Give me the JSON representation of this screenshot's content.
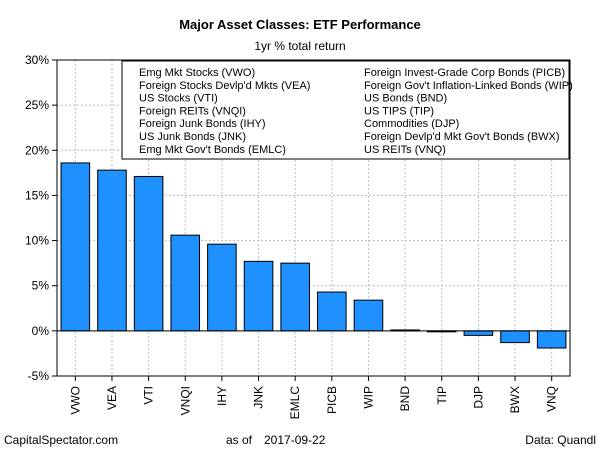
{
  "chart_data": {
    "type": "bar",
    "title": "Major Asset Classes: ETF Performance",
    "subtitle": "1yr % total return",
    "categories": [
      "VWO",
      "VEA",
      "VTI",
      "VNQI",
      "IHY",
      "JNK",
      "EMLC",
      "PICB",
      "WIP",
      "BND",
      "TIP",
      "DJP",
      "BWX",
      "VNQ"
    ],
    "values": [
      18.6,
      17.8,
      17.1,
      10.6,
      9.6,
      7.7,
      7.5,
      4.3,
      3.4,
      0.1,
      -0.1,
      -0.5,
      -1.3,
      -1.9
    ],
    "ylim": [
      -5,
      30
    ],
    "yticks": [
      -5,
      0,
      5,
      10,
      15,
      20,
      25,
      30
    ],
    "ytick_labels": [
      "-5%",
      "0%",
      "5%",
      "10%",
      "15%",
      "20%",
      "25%",
      "30%"
    ],
    "grid": true,
    "bar_color": "#1e90ff",
    "legend_position": "top-right",
    "legend_columns": [
      [
        "Emg Mkt Stocks (VWO)",
        "Foreign Stocks Devlp'd Mkts (VEA)",
        "US Stocks (VTI)",
        "Foreign REITs (VNQI)",
        "Foreign Junk Bonds (IHY)",
        "US Junk Bonds (JNK)",
        "Emg Mkt Gov't Bonds (EMLC)"
      ],
      [
        "Foreign Invest-Grade Corp Bonds (PICB)",
        "Foreign Gov't Inflation-Linked Bonds (WIP)",
        "US Bonds (BND)",
        "US TIPS (TIP)",
        "Commodities (DJP)",
        "Foreign Devlp'd Mkt Gov't Bonds (BWX)",
        "US REITs (VNQ)"
      ]
    ]
  },
  "footer": {
    "source": "CapitalSpectator.com",
    "as_of_label": "as of",
    "as_of_date": "2017-09-22",
    "data_credit": "Data: Quandl"
  }
}
